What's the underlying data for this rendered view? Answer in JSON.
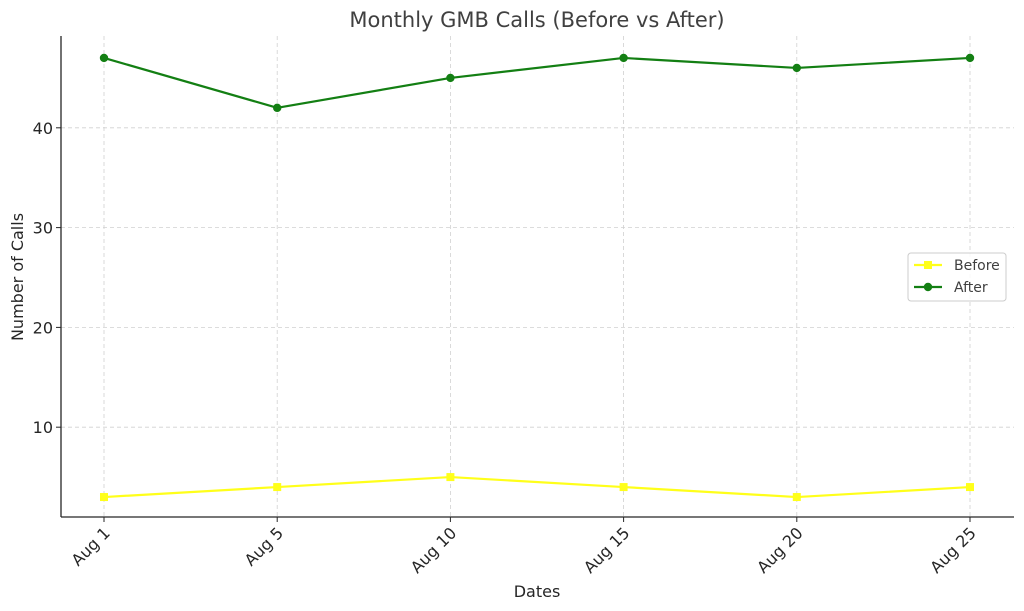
{
  "chart_data": {
    "type": "line",
    "title": "Monthly GMB Calls (Before vs After)",
    "xlabel": "Dates",
    "ylabel": "Number of Calls",
    "categories": [
      "Aug 1",
      "Aug 5",
      "Aug 10",
      "Aug 15",
      "Aug 20",
      "Aug 25"
    ],
    "y_ticks": [
      10,
      20,
      30,
      40
    ],
    "ylim": [
      1,
      49.2
    ],
    "grid": true,
    "legend_position": "center-right",
    "series": [
      {
        "name": "Before",
        "color": "#ffff1a",
        "marker": "square",
        "values": [
          3,
          4,
          5,
          4,
          3,
          4
        ]
      },
      {
        "name": "After",
        "color": "#137f13",
        "marker": "circle",
        "values": [
          47,
          42,
          45,
          47,
          46,
          47
        ]
      }
    ]
  }
}
